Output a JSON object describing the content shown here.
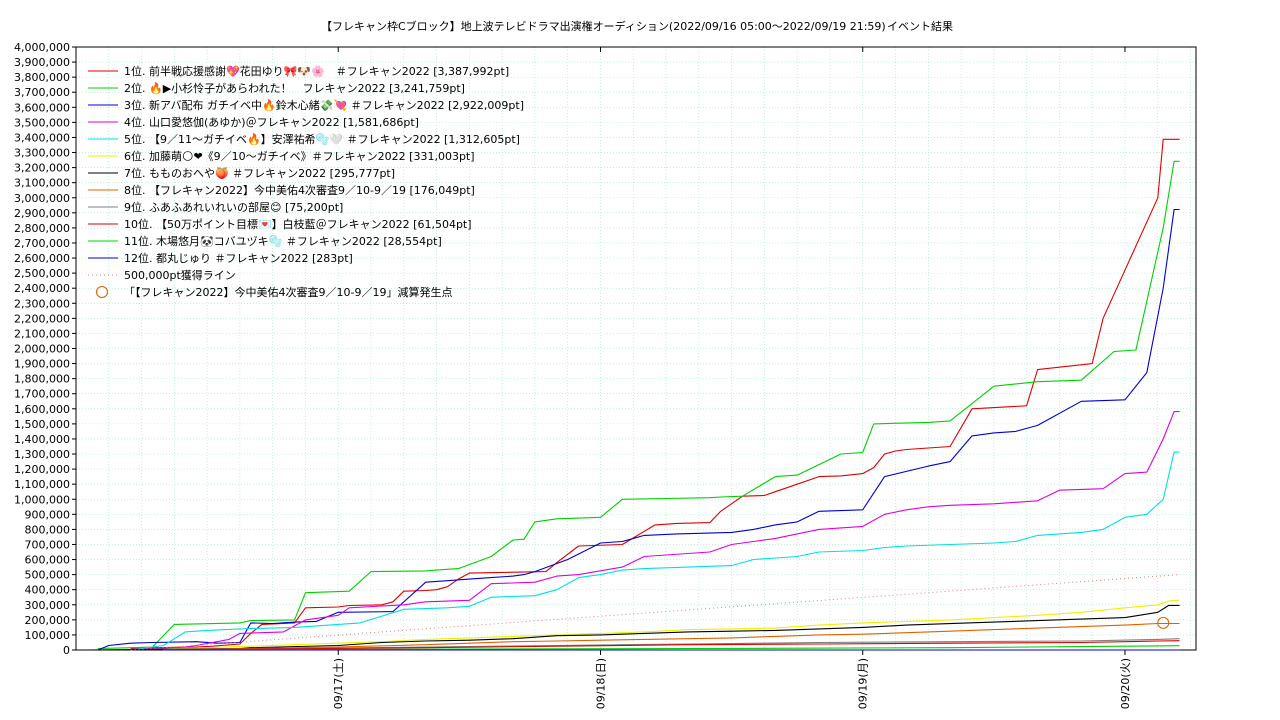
{
  "chart_data": {
    "type": "line",
    "title": "【フレキャン枠Cブロック】地上波テレビドラマ出演権オーディション(2022/09/16 05:00～2022/09/19 21:59)",
    "subtitle": "イベント結果",
    "xlabel": "",
    "ylabel": "",
    "ylim": [
      0,
      4000000
    ],
    "y_ticks": [
      "0",
      "100,000",
      "200,000",
      "300,000",
      "400,000",
      "500,000",
      "600,000",
      "700,000",
      "800,000",
      "900,000",
      "1,000,000",
      "1,100,000",
      "1,200,000",
      "1,300,000",
      "1,400,000",
      "1,500,000",
      "1,600,000",
      "1,700,000",
      "1,800,000",
      "1,900,000",
      "2,000,000",
      "2,100,000",
      "2,200,000",
      "2,300,000",
      "2,400,000",
      "2,500,000",
      "2,600,000",
      "2,700,000",
      "2,800,000",
      "2,900,000",
      "3,000,000",
      "3,100,000",
      "3,200,000",
      "3,300,000",
      "3,400,000",
      "3,500,000",
      "3,600,000",
      "3,700,000",
      "3,800,000",
      "3,900,000",
      "4,000,000"
    ],
    "x_ticks": [
      "09/17(土)",
      "09/18(日)",
      "09/19(月)",
      "09/20(火)"
    ],
    "grid": true,
    "legend_position": "top-left",
    "x_unit_note": "x values are hours from 2022/09/16 00:00",
    "xlim": [
      0,
      102.5
    ],
    "series": [
      {
        "name": "1位. 前半戦応援感謝💖花田ゆり🎀🐶🌸　＃フレキャン2022 [3,387,992pt]",
        "color": "#e00000",
        "x": [
          5,
          7,
          11,
          12.5,
          15,
          16,
          17,
          20,
          21,
          24,
          25,
          28,
          29,
          30,
          32,
          33,
          34,
          35,
          36,
          43,
          44,
          46,
          50,
          53,
          55,
          58,
          59,
          61,
          63,
          64,
          66,
          68,
          70,
          72,
          73,
          74,
          75,
          76,
          80,
          82,
          87,
          88,
          93,
          94,
          99,
          99.5,
          100.5,
          101
        ],
        "y": [
          10000,
          15000,
          20000,
          25000,
          40000,
          110000,
          170000,
          180000,
          280000,
          285000,
          295000,
          300000,
          320000,
          390000,
          395000,
          400000,
          420000,
          470000,
          510000,
          520000,
          580000,
          690000,
          700000,
          830000,
          840000,
          845000,
          920000,
          1020000,
          1025000,
          1050000,
          1100000,
          1150000,
          1155000,
          1170000,
          1210000,
          1300000,
          1320000,
          1330000,
          1350000,
          1600000,
          1620000,
          1860000,
          1900000,
          2200000,
          3000000,
          3387992,
          3388000,
          3387992
        ]
      },
      {
        "name": "2位. 🔥▶小杉怜子があらわれた！　フレキャン2022 [3,241,759pt]",
        "color": "#00d000",
        "x": [
          2,
          5,
          7,
          9,
          15,
          16,
          20,
          21,
          25,
          27,
          32,
          33,
          35,
          38,
          40,
          41,
          42,
          44,
          48,
          50,
          54,
          58,
          59,
          61,
          64,
          66,
          70,
          72,
          73,
          78,
          80,
          84,
          88,
          92,
          95,
          97,
          99.5,
          100.5,
          101
        ],
        "y": [
          10000,
          15000,
          20000,
          170000,
          180000,
          195000,
          200000,
          380000,
          390000,
          520000,
          525000,
          530000,
          540000,
          620000,
          730000,
          735000,
          850000,
          870000,
          880000,
          1000000,
          1005000,
          1010000,
          1015000,
          1020000,
          1150000,
          1160000,
          1300000,
          1310000,
          1500000,
          1510000,
          1520000,
          1750000,
          1780000,
          1790000,
          1980000,
          1990000,
          2800000,
          3241759,
          3241759
        ]
      },
      {
        "name": "3位. 新アバ配布 ガチイベ中🔥鈴木心緒💸💘 ＃フレキャン2022 [2,922,009pt]",
        "color": "#0000d0",
        "x": [
          2,
          3,
          5,
          7,
          11,
          13,
          15,
          16,
          18,
          20,
          22,
          24,
          29,
          32,
          33,
          34,
          36,
          38,
          40,
          41,
          42,
          45,
          48,
          50,
          52,
          55,
          60,
          62,
          64,
          66,
          68,
          72,
          74,
          78,
          80,
          82,
          84,
          86,
          88,
          92,
          96,
          98,
          99.5,
          100.5,
          101
        ],
        "y": [
          0,
          30000,
          45000,
          50000,
          55000,
          45000,
          50000,
          180000,
          175000,
          185000,
          190000,
          250000,
          255000,
          450000,
          455000,
          460000,
          470000,
          480000,
          490000,
          500000,
          520000,
          600000,
          710000,
          720000,
          760000,
          770000,
          780000,
          800000,
          830000,
          850000,
          920000,
          930000,
          1150000,
          1220000,
          1250000,
          1420000,
          1440000,
          1450000,
          1490000,
          1650000,
          1660000,
          1840000,
          2400000,
          2922009,
          2922009
        ]
      },
      {
        "name": "4位. 山口愛悠伽(あゆか)＠フレキャン2022 [1,581,686pt]",
        "color": "#e000e0",
        "x": [
          5,
          7,
          10,
          11,
          14,
          15,
          19,
          21,
          24,
          25,
          30,
          32,
          36,
          38,
          42,
          44,
          46,
          50,
          52,
          54,
          56,
          58,
          60,
          62,
          64,
          68,
          70,
          72,
          74,
          76,
          78,
          80,
          84,
          86,
          88,
          90,
          94,
          96,
          98,
          99.5,
          100.5,
          101
        ],
        "y": [
          5000,
          10000,
          20000,
          30000,
          70000,
          110000,
          120000,
          200000,
          230000,
          280000,
          300000,
          320000,
          330000,
          440000,
          450000,
          490000,
          500000,
          550000,
          620000,
          630000,
          640000,
          650000,
          700000,
          720000,
          740000,
          800000,
          810000,
          820000,
          900000,
          930000,
          950000,
          960000,
          970000,
          980000,
          990000,
          1060000,
          1070000,
          1170000,
          1180000,
          1400000,
          1581686,
          1581686
        ]
      },
      {
        "name": "5位. 【9／11〜ガチイベ🔥】安澤祐希🫧🤍 ＃フレキャン2022 [1,312,605pt]",
        "color": "#00e0e0",
        "x": [
          5,
          8,
          10,
          12,
          15,
          20,
          22,
          24,
          26,
          30,
          34,
          36,
          38,
          42,
          44,
          46,
          48,
          50,
          52,
          56,
          60,
          62,
          64,
          66,
          68,
          72,
          74,
          76,
          80,
          84,
          86,
          88,
          92,
          94,
          96,
          98,
          99.5,
          100.5,
          101
        ],
        "y": [
          0,
          30000,
          120000,
          130000,
          140000,
          150000,
          160000,
          170000,
          180000,
          270000,
          280000,
          290000,
          350000,
          360000,
          400000,
          480000,
          500000,
          530000,
          540000,
          550000,
          560000,
          600000,
          610000,
          620000,
          650000,
          660000,
          680000,
          690000,
          700000,
          710000,
          720000,
          760000,
          780000,
          800000,
          880000,
          900000,
          1000000,
          1312605,
          1312605
        ]
      },
      {
        "name": "6位. 加藤萌🌕❤《9／10〜ガチイベ》＃フレキャン2022 [331,003pt]",
        "color": "#f0f000",
        "x": [
          8,
          12,
          16,
          20,
          24,
          28,
          32,
          36,
          40,
          44,
          48,
          52,
          56,
          60,
          64,
          66,
          68,
          72,
          76,
          80,
          84,
          88,
          92,
          96,
          99,
          100,
          101
        ],
        "y": [
          5000,
          15000,
          25000,
          35000,
          45000,
          55000,
          70000,
          80000,
          90000,
          100000,
          110000,
          120000,
          135000,
          140000,
          145000,
          155000,
          165000,
          180000,
          190000,
          200000,
          215000,
          230000,
          250000,
          280000,
          300000,
          325000,
          331003
        ]
      },
      {
        "name": "7位. もものおへや🍑 ＃フレキャン2022 [295,777pt]",
        "color": "#000000",
        "x": [
          1,
          5,
          8,
          15,
          16,
          24,
          28,
          32,
          36,
          40,
          44,
          48,
          52,
          56,
          60,
          64,
          68,
          72,
          76,
          80,
          84,
          88,
          92,
          96,
          99,
          100,
          101
        ],
        "y": [
          0,
          2000,
          5000,
          10000,
          15000,
          30000,
          50000,
          60000,
          65000,
          75000,
          95000,
          100000,
          110000,
          120000,
          125000,
          130000,
          140000,
          150000,
          165000,
          175000,
          185000,
          195000,
          205000,
          215000,
          250000,
          295777,
          295777
        ]
      },
      {
        "name": "8位. 【フレキャン2022】今中美佑4次審査9／10-9／19 [176,049pt]",
        "color": "#e06000",
        "x": [
          8,
          16,
          24,
          32,
          36,
          40,
          44,
          48,
          52,
          56,
          60,
          64,
          68,
          72,
          76,
          80,
          84,
          88,
          92,
          96,
          99,
          101
        ],
        "y": [
          3000,
          10000,
          20000,
          35000,
          45000,
          55000,
          60000,
          65000,
          70000,
          75000,
          80000,
          90000,
          100000,
          105000,
          115000,
          125000,
          135000,
          145000,
          155000,
          165000,
          176049,
          176049
        ]
      },
      {
        "name": "9位. ふあふあれいれいの部屋😊 [75,200pt]",
        "color": "#808080",
        "x": [
          8,
          20,
          32,
          44,
          56,
          68,
          80,
          92,
          99,
          101
        ],
        "y": [
          2000,
          10000,
          20000,
          30000,
          40000,
          50000,
          55000,
          60000,
          70000,
          75200
        ]
      },
      {
        "name": "10位. 【50万ポイント目標💌】白枝藍＠フレキャン2022 [61,504pt]",
        "color": "#e00000",
        "x": [
          8,
          20,
          32,
          44,
          56,
          68,
          80,
          92,
          99,
          101
        ],
        "y": [
          1000,
          8000,
          15000,
          25000,
          35000,
          40000,
          45000,
          50000,
          60000,
          61504
        ]
      },
      {
        "name": "11位. 木場悠月🐼コバユヅキ🫧 ＃フレキャン2022 [28,554pt]",
        "color": "#00d000",
        "x": [
          8,
          32,
          56,
          80,
          96,
          101
        ],
        "y": [
          500,
          5000,
          10000,
          15000,
          25000,
          28554
        ]
      },
      {
        "name": "12位. 都丸じゅり ＃フレキャン2022 [283pt]",
        "color": "#0000d0",
        "x": [
          8,
          101
        ],
        "y": [
          100,
          283
        ]
      },
      {
        "name": "500,000pt獲得ライン",
        "color": "#e08080",
        "dashed": true,
        "x": [
          5,
          101
        ],
        "y": [
          0,
          500000
        ]
      }
    ],
    "annotations": [
      {
        "label": "「【フレキャン2022】今中美佑4次審査9／10-9／19」減算発生点",
        "type": "circle",
        "color": "#e06000",
        "x": 99.5,
        "y": 180000
      }
    ]
  }
}
